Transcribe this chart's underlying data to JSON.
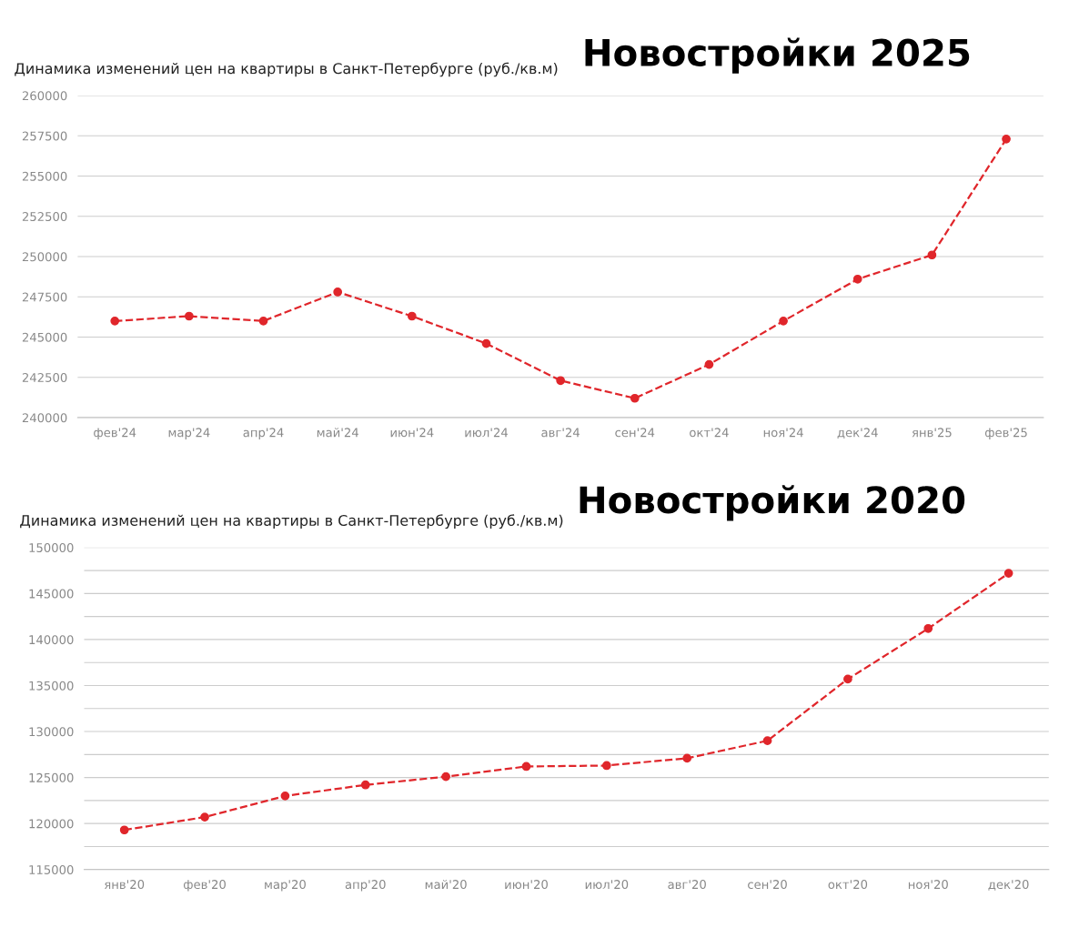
{
  "chart_data": [
    {
      "type": "line",
      "title": "Новостройки 2025",
      "subtitle": "Динамика изменений цен на квартиры в Санкт-Петербурге (руб./кв.м)",
      "categories": [
        "фев'24",
        "мар'24",
        "апр'24",
        "май'24",
        "июн'24",
        "июл'24",
        "авг'24",
        "сен'24",
        "окт'24",
        "ноя'24",
        "дек'24",
        "янв'25",
        "фев'25"
      ],
      "series": [
        {
          "color": "#e0262b",
          "values": [
            246000,
            246300,
            246000,
            247800,
            246300,
            244600,
            242300,
            241200,
            243300,
            246000,
            248600,
            250100,
            257300
          ]
        }
      ],
      "ylim": [
        240000,
        260000
      ],
      "yticks": [
        240000,
        242500,
        245000,
        247500,
        250000,
        252500,
        255000,
        257500,
        260000
      ],
      "grid": "y",
      "marker": "circle",
      "line_style": "dashed"
    },
    {
      "type": "line",
      "title": "Новостройки 2020",
      "subtitle": "Динамика изменений цен на квартиры в Санкт-Петербурге (руб./кв.м)",
      "categories": [
        "янв'20",
        "фев'20",
        "мар'20",
        "апр'20",
        "май'20",
        "июн'20",
        "июл'20",
        "авг'20",
        "сен'20",
        "окт'20",
        "ноя'20",
        "дек'20"
      ],
      "series": [
        {
          "color": "#e0262b",
          "values": [
            119300,
            120700,
            123000,
            124200,
            125100,
            126200,
            126300,
            127100,
            129000,
            135700,
            141200,
            147200
          ]
        }
      ],
      "ylim": [
        115000,
        150000
      ],
      "yticks": [
        115000,
        {
          "value": 117500,
          "label": null
        },
        120000,
        {
          "value": 122500,
          "label": null
        },
        125000,
        {
          "value": 127500,
          "label": null
        },
        130000,
        {
          "value": 132500,
          "label": null
        },
        135000,
        {
          "value": 137500,
          "label": null
        },
        140000,
        {
          "value": 142500,
          "label": null
        },
        145000,
        {
          "value": 147500,
          "label": null
        },
        150000
      ],
      "grid": "y",
      "marker": "circle",
      "line_style": "dashed"
    }
  ]
}
